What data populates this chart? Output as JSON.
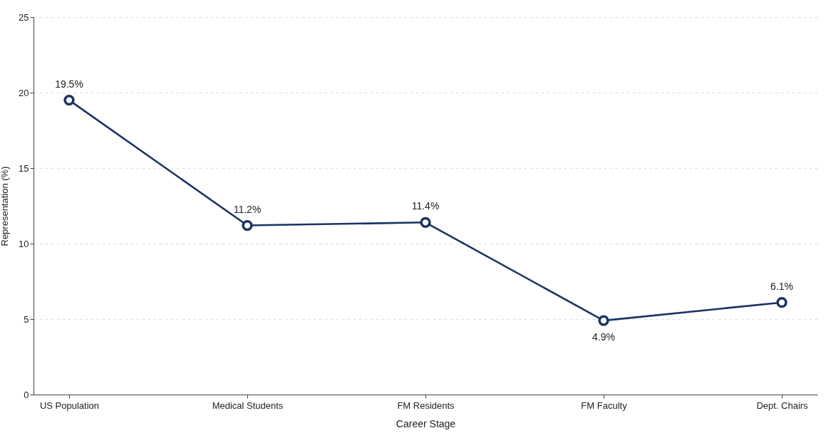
{
  "chart_data": {
    "type": "line",
    "xlabel": "Career Stage",
    "ylabel": "Representation (%)",
    "categories": [
      "US Population",
      "Medical Students",
      "FM Residents",
      "FM Faculty",
      "Dept. Chairs"
    ],
    "series": [
      {
        "color": "#1b3266",
        "values": [
          19.5,
          11.2,
          11.4,
          4.9,
          6.1
        ],
        "value_labels": [
          "19.5%",
          "11.2%",
          "11.4%",
          "4.9%",
          "6.1%"
        ]
      }
    ],
    "ylim": [
      0,
      25
    ],
    "yticks": [
      0,
      5,
      10,
      15,
      20,
      25
    ],
    "grid": "y",
    "marker": "circle",
    "line_style": "solid"
  }
}
